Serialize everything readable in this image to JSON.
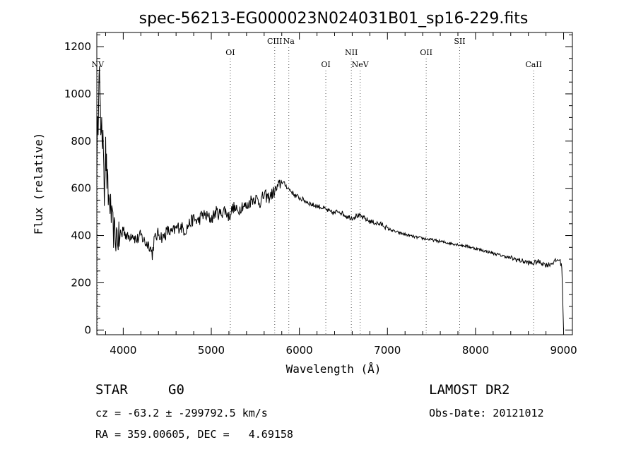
{
  "chart_data": {
    "type": "line",
    "title": "spec-56213-EG000023N024031B01_sp16-229.fits",
    "xlabel": "Wavelength (Å)",
    "ylabel": "Flux (relative)",
    "xlim": [
      3700,
      9100
    ],
    "ylim": [
      -20,
      1260
    ],
    "xticks": [
      4000,
      5000,
      6000,
      7000,
      8000,
      9000
    ],
    "yticks": [
      0,
      200,
      400,
      600,
      800,
      1000,
      1200
    ],
    "grid": false,
    "line_color": "#000000",
    "series": [
      {
        "x": [
          3700,
          3715,
          3725,
          3735,
          3745,
          3755,
          3765,
          3775,
          3785,
          3800,
          3815,
          3830,
          3850,
          3870,
          3890,
          3910,
          3930,
          3950,
          3975,
          4000,
          4050,
          4100,
          4150,
          4200,
          4250,
          4300,
          4330,
          4350,
          4400,
          4450,
          4500,
          4550,
          4600,
          4650,
          4700,
          4750,
          4800,
          4850,
          4900,
          4950,
          5000,
          5050,
          5100,
          5150,
          5200,
          5250,
          5300,
          5350,
          5400,
          5450,
          5500,
          5550,
          5600,
          5650,
          5700,
          5750,
          5800,
          5850,
          5900,
          5950,
          6000,
          6050,
          6100,
          6150,
          6200,
          6250,
          6300,
          6350,
          6400,
          6450,
          6500,
          6550,
          6600,
          6650,
          6700,
          6750,
          6800,
          6850,
          6900,
          6950,
          7000,
          7100,
          7200,
          7300,
          7400,
          7500,
          7600,
          7700,
          7800,
          7900,
          8000,
          8100,
          8200,
          8300,
          8400,
          8500,
          8550,
          8600,
          8650,
          8700,
          8750,
          8800,
          8850,
          8900,
          8950,
          8980,
          9000
        ],
        "y": [
          700,
          900,
          1150,
          1000,
          780,
          950,
          720,
          820,
          600,
          760,
          640,
          560,
          540,
          450,
          420,
          390,
          410,
          380,
          395,
          430,
          390,
          410,
          380,
          400,
          370,
          360,
          320,
          380,
          410,
          390,
          420,
          410,
          430,
          440,
          420,
          450,
          470,
          460,
          490,
          480,
          470,
          500,
          490,
          510,
          480,
          520,
          500,
          530,
          520,
          550,
          560,
          540,
          570,
          560,
          580,
          600,
          630,
          610,
          590,
          570,
          560,
          550,
          540,
          530,
          525,
          520,
          510,
          500,
          495,
          505,
          490,
          480,
          475,
          485,
          480,
          470,
          460,
          455,
          450,
          445,
          430,
          415,
          405,
          395,
          388,
          382,
          375,
          368,
          362,
          355,
          345,
          335,
          325,
          315,
          305,
          295,
          290,
          285,
          282,
          290,
          285,
          275,
          280,
          290,
          300,
          270,
          0
        ]
      }
    ],
    "lines": [
      {
        "name": "NV",
        "x": 3710,
        "row": 3
      },
      {
        "name": "OI",
        "x": 5216,
        "row": 2
      },
      {
        "name": "CIII",
        "x": 5720,
        "row": 1
      },
      {
        "name": "Na",
        "x": 5880,
        "row": 1
      },
      {
        "name": "OI",
        "x": 6300,
        "row": 3
      },
      {
        "name": "NII",
        "x": 6590,
        "row": 2
      },
      {
        "name": "NeV",
        "x": 6690,
        "row": 3
      },
      {
        "name": "OII",
        "x": 7440,
        "row": 2
      },
      {
        "name": "SII",
        "x": 7820,
        "row": 1
      },
      {
        "name": "CaII",
        "x": 8660,
        "row": 3
      }
    ]
  },
  "info": {
    "class": "STAR",
    "subclass": "G0",
    "survey": "LAMOST DR2",
    "cz": "cz = -63.2 ± -299792.5 km/s",
    "obs_date": "Obs-Date: 20121012",
    "radec": "RA = 359.00605, DEC =   4.69158"
  }
}
